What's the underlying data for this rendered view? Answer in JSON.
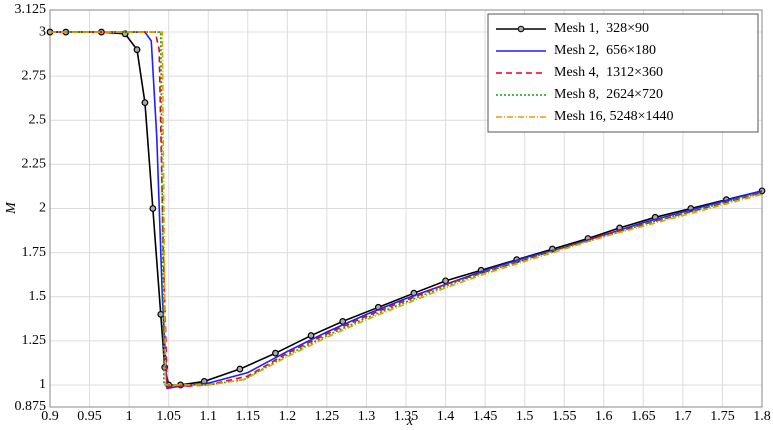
{
  "chart_data": {
    "type": "line",
    "x_label": "x",
    "y_label": "M",
    "xlim": [
      0.9,
      1.8
    ],
    "xticks": [
      0.9,
      0.95,
      1,
      1.05,
      1.1,
      1.15,
      1.2,
      1.25,
      1.3,
      1.35,
      1.4,
      1.45,
      1.5,
      1.55,
      1.6,
      1.65,
      1.7,
      1.75,
      1.8
    ],
    "ylim": [
      0.875,
      3.125
    ],
    "yticks": [
      0.875,
      1,
      1.25,
      1.5,
      1.75,
      2,
      2.25,
      2.5,
      2.75,
      3,
      3.125
    ],
    "grid": true,
    "legend": "upper right",
    "series": [
      {
        "name": "Mesh 1,  328×90",
        "color": "#000000",
        "dash": "",
        "marker": true,
        "x": [
          0.9,
          0.92,
          0.965,
          0.995,
          1.01,
          1.02,
          1.03,
          1.04,
          1.045,
          1.05,
          1.065,
          1.095,
          1.14,
          1.185,
          1.23,
          1.27,
          1.315,
          1.36,
          1.4,
          1.445,
          1.49,
          1.535,
          1.58,
          1.62,
          1.665,
          1.71,
          1.755,
          1.8
        ],
        "values": [
          3,
          3,
          3,
          2.99,
          2.9,
          2.6,
          2.0,
          1.4,
          1.1,
          1.0,
          1.0,
          1.02,
          1.09,
          1.18,
          1.28,
          1.36,
          1.44,
          1.52,
          1.59,
          1.65,
          1.71,
          1.77,
          1.83,
          1.89,
          1.95,
          2.0,
          2.05,
          2.1
        ]
      },
      {
        "name": "Mesh 2,  656×180",
        "color": "#1f1fff",
        "dash": "",
        "marker": false,
        "x": [
          0.9,
          1.02,
          1.028,
          1.035,
          1.042,
          1.048,
          1.06,
          1.1,
          1.15,
          1.2,
          1.25,
          1.3,
          1.35,
          1.4,
          1.45,
          1.5,
          1.55,
          1.6,
          1.65,
          1.7,
          1.75,
          1.8
        ],
        "values": [
          3,
          3,
          2.95,
          2.4,
          1.5,
          0.98,
          0.99,
          1.01,
          1.07,
          1.19,
          1.3,
          1.4,
          1.49,
          1.57,
          1.65,
          1.72,
          1.78,
          1.85,
          1.92,
          1.98,
          2.04,
          2.1
        ]
      },
      {
        "name": "Mesh 4,  1312×360",
        "color": "#e8001c",
        "dash": "6 4",
        "marker": false,
        "x": [
          0.9,
          1.033,
          1.038,
          1.043,
          1.048,
          1.06,
          1.1,
          1.15,
          1.2,
          1.25,
          1.3,
          1.35,
          1.4,
          1.45,
          1.5,
          1.55,
          1.6,
          1.65,
          1.7,
          1.75,
          1.8
        ],
        "values": [
          3,
          3,
          2.9,
          1.8,
          0.99,
          0.99,
          1.0,
          1.05,
          1.18,
          1.29,
          1.39,
          1.48,
          1.57,
          1.64,
          1.71,
          1.78,
          1.85,
          1.91,
          1.97,
          2.03,
          2.09
        ]
      },
      {
        "name": "Mesh 8,  2624×720",
        "color": "#14a014",
        "dash": "2 2",
        "marker": false,
        "x": [
          0.9,
          1.04,
          1.044,
          1.05,
          1.1,
          1.145,
          1.2,
          1.25,
          1.3,
          1.35,
          1.4,
          1.45,
          1.5,
          1.55,
          1.6,
          1.65,
          1.7,
          1.75,
          1.8
        ],
        "values": [
          3,
          3,
          1.0,
          1.0,
          1.0,
          1.03,
          1.17,
          1.28,
          1.38,
          1.47,
          1.56,
          1.64,
          1.71,
          1.78,
          1.84,
          1.91,
          1.97,
          2.03,
          2.09
        ]
      },
      {
        "name": "Mesh 16, 5248×1440",
        "color": "#e6a000",
        "dash": "6 2 1 2",
        "marker": false,
        "x": [
          0.9,
          1.042,
          1.046,
          1.05,
          1.1,
          1.145,
          1.2,
          1.25,
          1.3,
          1.35,
          1.4,
          1.45,
          1.5,
          1.55,
          1.6,
          1.65,
          1.7,
          1.75,
          1.8
        ],
        "values": [
          3,
          3,
          1.0,
          1.0,
          1.0,
          1.03,
          1.16,
          1.27,
          1.37,
          1.46,
          1.55,
          1.63,
          1.7,
          1.77,
          1.84,
          1.9,
          1.96,
          2.02,
          2.08
        ]
      }
    ]
  }
}
